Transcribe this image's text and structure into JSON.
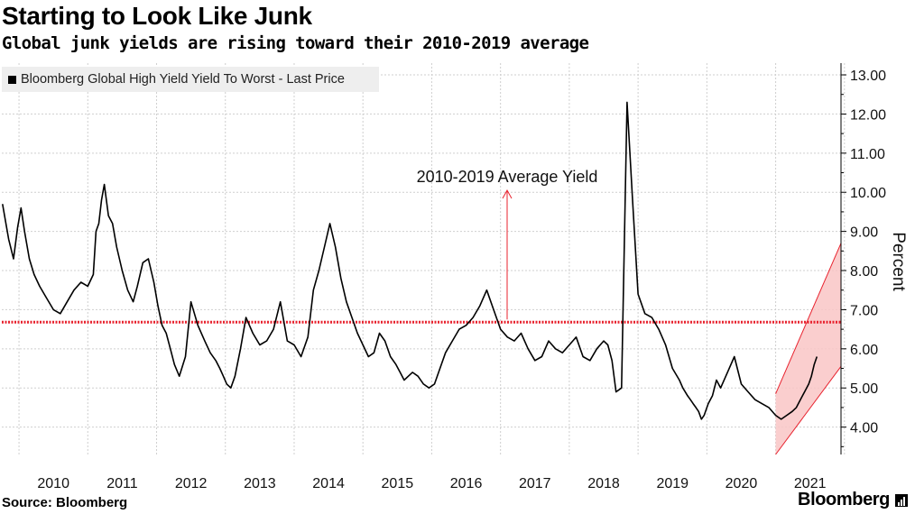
{
  "header": {
    "title": "Starting to Look Like Junk",
    "subtitle": "Global junk yields are rising toward their 2010-2019 average"
  },
  "footer": {
    "source": "Source: Bloomberg",
    "brand": "Bloomberg"
  },
  "colors": {
    "series": "#000000",
    "average_line": "#e8222e",
    "channel_fill": "#f9c6c6",
    "channel_edge": "#e8222e",
    "grid": "#cfcfcf"
  },
  "chart_data": {
    "type": "line",
    "title": "Starting to Look Like Junk",
    "subtitle": "Global junk yields are rising toward their 2010-2019 average",
    "ylabel": "Percent",
    "legend": [
      "Bloomberg Global High Yield Yield To Worst - Last Price"
    ],
    "legend_position": "top-left",
    "ylim": [
      3.3,
      13.3
    ],
    "xlim": [
      2009.75,
      2021.95
    ],
    "x_ticks": [
      "2010",
      "2011",
      "2012",
      "2013",
      "2014",
      "2015",
      "2016",
      "2017",
      "2018",
      "2019",
      "2020",
      "2021"
    ],
    "y_ticks": [
      "4.00",
      "5.00",
      "6.00",
      "7.00",
      "8.00",
      "9.00",
      "10.00",
      "11.00",
      "12.00",
      "13.00"
    ],
    "grid": true,
    "average_line": {
      "label": "2010-2019 Average Yield",
      "value": 6.68
    },
    "channel": {
      "lower": [
        [
          2021.0,
          3.3
        ],
        [
          2021.95,
          5.55
        ]
      ],
      "upper": [
        [
          2021.0,
          4.85
        ],
        [
          2021.95,
          8.7
        ]
      ]
    },
    "series": [
      {
        "name": "Bloomberg Global High Yield Yield To Worst - Last Price",
        "x": [
          2009.76,
          2009.85,
          2009.92,
          2009.98,
          2010.03,
          2010.08,
          2010.15,
          2010.22,
          2010.3,
          2010.4,
          2010.5,
          2010.6,
          2010.7,
          2010.8,
          2010.9,
          2011.0,
          2011.08,
          2011.12,
          2011.16,
          2011.2,
          2011.24,
          2011.3,
          2011.36,
          2011.42,
          2011.5,
          2011.58,
          2011.66,
          2011.72,
          2011.8,
          2011.88,
          2011.96,
          2012.02,
          2012.08,
          2012.14,
          2012.2,
          2012.26,
          2012.33,
          2012.42,
          2012.5,
          2012.6,
          2012.7,
          2012.78,
          2012.86,
          2012.92,
          2012.97,
          2013.02,
          2013.08,
          2013.14,
          2013.22,
          2013.3,
          2013.4,
          2013.5,
          2013.6,
          2013.7,
          2013.8,
          2013.9,
          2014.0,
          2014.1,
          2014.2,
          2014.28,
          2014.36,
          2014.44,
          2014.52,
          2014.6,
          2014.68,
          2014.76,
          2014.84,
          2014.92,
          2015.0,
          2015.08,
          2015.16,
          2015.24,
          2015.32,
          2015.4,
          2015.48,
          2015.54,
          2015.6,
          2015.66,
          2015.72,
          2015.8,
          2015.88,
          2015.96,
          2016.04,
          2016.12,
          2016.2,
          2016.3,
          2016.4,
          2016.5,
          2016.6,
          2016.7,
          2016.8,
          2016.9,
          2017.0,
          2017.1,
          2017.2,
          2017.3,
          2017.4,
          2017.5,
          2017.6,
          2017.7,
          2017.8,
          2017.9,
          2018.0,
          2018.1,
          2018.2,
          2018.3,
          2018.4,
          2018.5,
          2018.56,
          2018.62,
          2018.68,
          2018.76,
          2018.84,
          2018.92,
          2019.0,
          2019.1,
          2019.2,
          2019.3,
          2019.4,
          2019.5,
          2019.6,
          2019.65,
          2019.72,
          2019.76,
          2019.8,
          2019.84,
          2019.88,
          2019.92,
          2019.96,
          2020.02,
          2020.08,
          2020.14,
          2020.2,
          2020.3,
          2020.4,
          2020.5,
          2020.6,
          2020.7,
          2020.8,
          2020.9,
          2021.0,
          2021.08,
          2021.16,
          2021.24,
          2021.3,
          2021.36,
          2021.42,
          2021.48,
          2021.52,
          2021.56,
          2021.6
        ],
        "values": [
          9.7,
          8.8,
          8.3,
          9.1,
          9.6,
          9.0,
          8.3,
          7.9,
          7.6,
          7.3,
          7.0,
          6.9,
          7.2,
          7.5,
          7.7,
          7.6,
          7.9,
          9.0,
          9.2,
          9.8,
          10.2,
          9.4,
          9.2,
          8.6,
          8.0,
          7.5,
          7.2,
          7.6,
          8.2,
          8.3,
          7.7,
          7.1,
          6.6,
          6.4,
          6.0,
          5.6,
          5.3,
          5.8,
          7.2,
          6.6,
          6.2,
          5.9,
          5.7,
          5.5,
          5.3,
          5.1,
          5.0,
          5.3,
          6.0,
          6.8,
          6.4,
          6.1,
          6.2,
          6.5,
          7.2,
          6.2,
          6.1,
          5.8,
          6.3,
          7.5,
          8.0,
          8.6,
          9.2,
          8.6,
          7.8,
          7.2,
          6.8,
          6.4,
          6.1,
          5.8,
          5.9,
          6.4,
          6.2,
          5.8,
          5.6,
          5.4,
          5.2,
          5.3,
          5.4,
          5.3,
          5.1,
          5.0,
          5.1,
          5.5,
          5.9,
          6.2,
          6.5,
          6.6,
          6.8,
          7.1,
          7.5,
          7.0,
          6.5,
          6.3,
          6.2,
          6.4,
          6.0,
          5.7,
          5.8,
          6.2,
          6.0,
          5.9,
          6.1,
          6.3,
          5.8,
          5.7,
          6.0,
          6.2,
          6.1,
          5.7,
          4.9,
          5.0,
          12.3,
          9.8,
          7.4,
          6.9,
          6.8,
          6.5,
          6.1,
          5.5,
          5.2,
          5.0,
          4.8,
          4.7,
          4.6,
          4.5,
          4.4,
          4.2,
          4.3,
          4.6,
          4.8,
          5.2,
          5.0,
          5.4,
          5.8,
          5.1,
          4.9,
          4.7,
          4.6,
          4.5,
          4.3,
          4.2,
          4.3,
          4.4,
          4.5,
          4.7,
          4.9,
          5.1,
          5.3,
          5.6,
          5.8
        ]
      }
    ]
  }
}
